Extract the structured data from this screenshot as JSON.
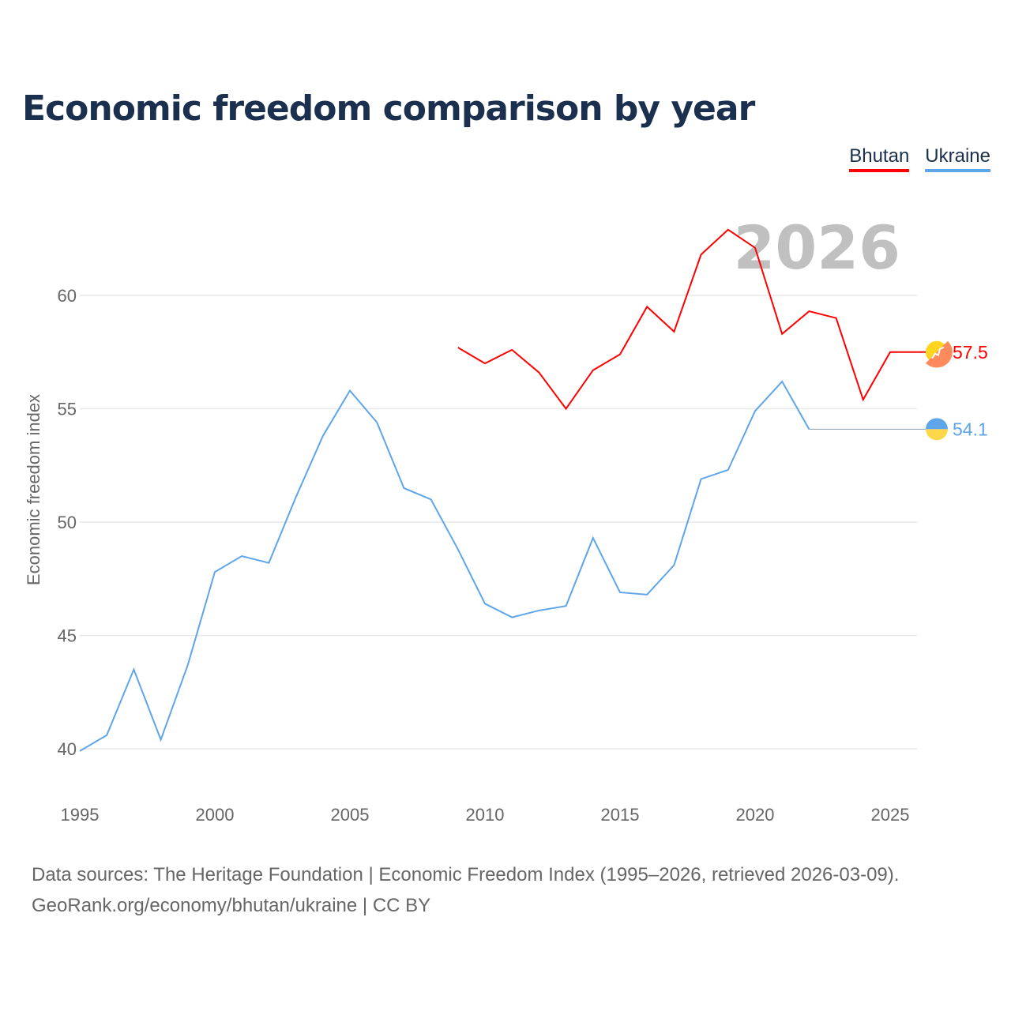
{
  "title": "Economic freedom comparison by year",
  "year_label": "2026",
  "source_line1": "Data sources: The Heritage Foundation | Economic Freedom Index (1995–2026, retrieved 2026-03-09).",
  "source_line2": "GeoRank.org/economy/bhutan/ukraine | CC BY",
  "chart_data": {
    "type": "line",
    "title": "Economic freedom comparison by year",
    "xlabel": "",
    "ylabel": "Economic freedom index",
    "xlim": [
      1995,
      2026
    ],
    "ylim": [
      39,
      64
    ],
    "xticks": [
      "1995",
      "2000",
      "2005",
      "2010",
      "2015",
      "2020",
      "2025"
    ],
    "yticks": [
      "40",
      "45",
      "50",
      "55",
      "60"
    ],
    "grid": true,
    "legend_position": "top-right",
    "series": [
      {
        "name": "Bhutan",
        "color": "#ff0000",
        "end_label": "57.5",
        "x": [
          2009,
          2010,
          2011,
          2012,
          2013,
          2014,
          2015,
          2016,
          2017,
          2018,
          2019,
          2020,
          2021,
          2022,
          2023,
          2024,
          2025,
          2026
        ],
        "values": [
          57.7,
          57.0,
          57.6,
          56.6,
          55.0,
          56.7,
          57.4,
          59.5,
          58.4,
          61.8,
          62.9,
          62.1,
          58.3,
          59.3,
          59.0,
          55.4,
          57.5,
          57.5
        ]
      },
      {
        "name": "Ukraine",
        "color": "#5ea5ea",
        "end_label": "54.1",
        "x": [
          1995,
          1996,
          1997,
          1998,
          1999,
          2000,
          2001,
          2002,
          2003,
          2004,
          2005,
          2006,
          2007,
          2008,
          2009,
          2010,
          2011,
          2012,
          2013,
          2014,
          2015,
          2016,
          2017,
          2018,
          2019,
          2020,
          2021,
          2022
        ],
        "values": [
          39.9,
          40.6,
          43.5,
          40.4,
          43.7,
          47.8,
          48.5,
          48.2,
          51.1,
          53.8,
          55.8,
          54.4,
          51.5,
          51.0,
          48.8,
          46.4,
          45.8,
          46.1,
          46.3,
          49.3,
          46.9,
          46.8,
          48.1,
          51.9,
          52.3,
          54.9,
          56.2,
          54.1
        ]
      }
    ]
  }
}
